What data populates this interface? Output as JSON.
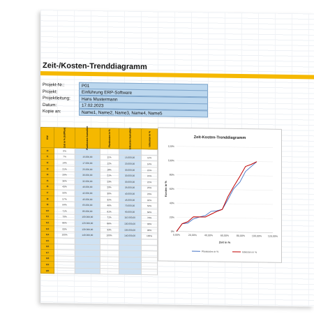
{
  "title": "Zeit-/Kosten-Trenddiagramm",
  "info": [
    {
      "label": "Projekt-Nr.:",
      "value": "P01"
    },
    {
      "label": "Projekt:",
      "value": "Einführung ERP-Software"
    },
    {
      "label": "Projektleitung:",
      "value": "Hans Mustermann"
    },
    {
      "label": "Datum:",
      "value": "17.02.2023"
    },
    {
      "label": "Kopie an:",
      "value": "Name1, Name2, Name3, Name4, Name5"
    }
  ],
  "table": {
    "headers": [
      "KW",
      "Zeit in % (Ist/Plan)",
      "Plankosten kumuliert",
      "Plankosten in %",
      "Istkosten kumuliert",
      "Istkosten in %"
    ],
    "rows": [
      [
        "t0",
        "0%",
        "",
        "",
        "",
        ""
      ],
      [
        "t1",
        "7%",
        "15.000,00",
        "11%",
        "15.000,00",
        "11%"
      ],
      [
        "t2",
        "14%",
        "17.000,00",
        "12%",
        "20.000,00",
        "14%"
      ],
      [
        "t3",
        "21%",
        "25.000,00",
        "18%",
        "30.000,00",
        "21%"
      ],
      [
        "t4",
        "29%",
        "30.000,00",
        "21%",
        "30.000,00",
        "21%"
      ],
      [
        "t5",
        "36%",
        "32.000,00",
        "23%",
        "30.000,00",
        "21%"
      ],
      [
        "t6",
        "43%",
        "40.000,00",
        "29%",
        "35.000,00",
        "25%"
      ],
      [
        "t7",
        "50%",
        "42.000,00",
        "30%",
        "40.000,00",
        "29%"
      ],
      [
        "t8",
        "57%",
        "45.000,00",
        "32%",
        "45.000,00",
        "32%"
      ],
      [
        "t9",
        "64%",
        "65.000,00",
        "46%",
        "70.000,00",
        "50%"
      ],
      [
        "t10",
        "71%",
        "85.000,00",
        "61%",
        "90.000,00",
        "64%"
      ],
      [
        "t11",
        "79%",
        "100.000,00",
        "71%",
        "110.000,00",
        "79%"
      ],
      [
        "t12",
        "86%",
        "120.000,00",
        "86%",
        "130.000,00",
        "93%"
      ],
      [
        "t13",
        "93%",
        "130.000,00",
        "93%",
        "135.000,00",
        "96%"
      ],
      [
        "t14",
        "100%",
        "140.000,00",
        "100%",
        "140.000,00",
        "100%"
      ],
      [
        "t15",
        "",
        "",
        "",
        "",
        ""
      ],
      [
        "t16",
        "",
        "",
        "",
        "",
        ""
      ],
      [
        "t17",
        "",
        "",
        "",
        "",
        ""
      ],
      [
        "t18",
        "",
        "",
        "",
        "",
        ""
      ],
      [
        "t19",
        "",
        "",
        "",
        "",
        ""
      ],
      [
        "t20",
        "",
        "",
        "",
        "",
        ""
      ]
    ]
  },
  "chart_data": {
    "type": "line",
    "title": "Zeit-Kosten-Trenddiagramm",
    "xlabel": "Zeit in %",
    "ylabel": "Kosten in %",
    "xlim": [
      0,
      120
    ],
    "ylim": [
      0,
      120
    ],
    "x_ticks": [
      "0,00%",
      "20,00%",
      "40,00%",
      "60,00%",
      "80,00%",
      "100,00%",
      "120,00%"
    ],
    "y_ticks": [
      "0%",
      "20%",
      "40%",
      "60%",
      "80%",
      "100%",
      "120%"
    ],
    "legend_position": "bottom",
    "series": [
      {
        "name": "Plankosten in %",
        "color": "#4472c4",
        "x": [
          0,
          7,
          14,
          21,
          29,
          36,
          43,
          50,
          57,
          64,
          71,
          79,
          86,
          93,
          100
        ],
        "y": [
          0,
          11,
          12,
          18,
          21,
          23,
          29,
          30,
          32,
          46,
          61,
          71,
          86,
          93,
          100
        ]
      },
      {
        "name": "Istkosten in %",
        "color": "#c00000",
        "x": [
          0,
          7,
          14,
          21,
          29,
          36,
          43,
          50,
          57,
          64,
          71,
          79,
          86,
          93,
          100
        ],
        "y": [
          0,
          11,
          14,
          21,
          21,
          21,
          25,
          29,
          32,
          50,
          64,
          79,
          93,
          96,
          100
        ]
      }
    ]
  }
}
